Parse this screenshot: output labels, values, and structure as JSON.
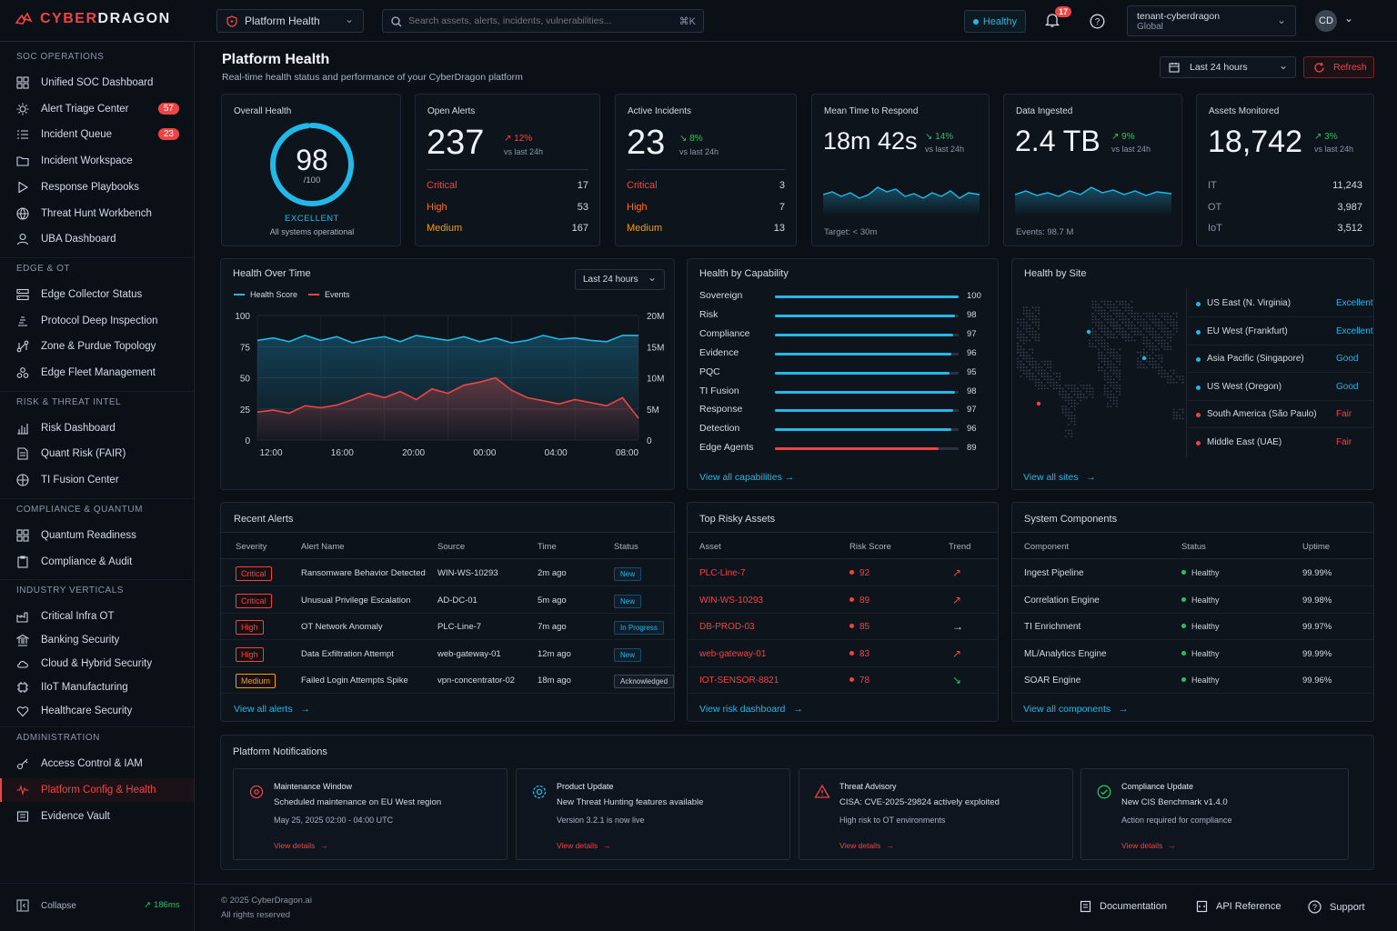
{
  "brand": {
    "name_red": "CYBER",
    "name_white": "DRAGON"
  },
  "topbar": {
    "page_select": "Platform Health",
    "search_placeholder": "Search assets, alerts, incidents, vulnerabilities...",
    "search_kbd": "⌘K",
    "health_status": "Healthy",
    "notifications_count": "17",
    "tenant_name": "tenant-cyberdragon",
    "tenant_scope": "Global",
    "avatar": "CD"
  },
  "sidebar": {
    "sections": [
      {
        "title": "SOC OPERATIONS",
        "items": [
          {
            "label": "Unified SOC Dashboard",
            "icon": "grid-icon"
          },
          {
            "label": "Alert Triage Center",
            "icon": "sun-icon",
            "count": "57"
          },
          {
            "label": "Incident Queue",
            "icon": "list-icon",
            "count": "23"
          },
          {
            "label": "Incident Workspace",
            "icon": "folder-icon"
          },
          {
            "label": "Response Playbooks",
            "icon": "play-icon"
          },
          {
            "label": "Threat Hunt Workbench",
            "icon": "globe-icon"
          },
          {
            "label": "UBA Dashboard",
            "icon": "user-icon"
          }
        ]
      },
      {
        "title": "EDGE & OT",
        "items": [
          {
            "label": "Edge Collector Status",
            "icon": "server-icon"
          },
          {
            "label": "Protocol Deep Inspection",
            "icon": "inspect-icon"
          },
          {
            "label": "Zone & Purdue Topology",
            "icon": "topology-icon"
          },
          {
            "label": "Edge Fleet Management",
            "icon": "fleet-icon"
          }
        ]
      },
      {
        "title": "RISK & THREAT INTEL",
        "items": [
          {
            "label": "Risk Dashboard",
            "icon": "risk-icon"
          },
          {
            "label": "Quant Risk (FAIR)",
            "icon": "document-icon"
          },
          {
            "label": "TI Fusion Center",
            "icon": "target-icon"
          }
        ]
      },
      {
        "title": "COMPLIANCE & QUANTUM",
        "items": [
          {
            "label": "Quantum Readiness",
            "icon": "quantum-icon"
          },
          {
            "label": "Compliance & Audit",
            "icon": "clipboard-icon"
          }
        ]
      },
      {
        "title": "INDUSTRY VERTICALS",
        "items": [
          {
            "label": "Critical Infra OT",
            "icon": "factory-icon"
          },
          {
            "label": "Banking Security",
            "icon": "bank-icon"
          },
          {
            "label": "Cloud & Hybrid Security",
            "icon": "cloud-icon"
          },
          {
            "label": "IIoT Manufacturing",
            "icon": "chip-icon"
          },
          {
            "label": "Healthcare Security",
            "icon": "heart-icon"
          }
        ]
      },
      {
        "title": "ADMINISTRATION",
        "items": [
          {
            "label": "Access Control & IAM",
            "icon": "key-icon"
          },
          {
            "label": "Platform Config & Health",
            "icon": "pulse-icon",
            "active": true
          },
          {
            "label": "Evidence Vault",
            "icon": "vault-icon"
          }
        ]
      }
    ],
    "collapse_label": "Collapse",
    "latency": "186ms"
  },
  "header": {
    "title": "Platform Health",
    "subtitle": "Real-time health status and performance of your CyberDragon platform",
    "range": "Last 24 hours",
    "refresh": "Refresh"
  },
  "kpis": {
    "overall": {
      "title": "Overall Health",
      "score": "98",
      "of": "/100",
      "score_value": 98,
      "rating": "EXCELLENT",
      "note": "All systems operational"
    },
    "open_alerts": {
      "title": "Open Alerts",
      "value": "237",
      "delta": "↗ 12%",
      "vs": "vs last 24h",
      "rows": [
        {
          "label": "Critical",
          "value": "17"
        },
        {
          "label": "High",
          "value": "53"
        },
        {
          "label": "Medium",
          "value": "167"
        }
      ]
    },
    "active_incidents": {
      "title": "Active Incidents",
      "value": "23",
      "delta": "↘ 8%",
      "vs": "vs last 24h",
      "rows": [
        {
          "label": "Critical",
          "value": "3"
        },
        {
          "label": "High",
          "value": "7"
        },
        {
          "label": "Medium",
          "value": "13"
        }
      ]
    },
    "mttr": {
      "title": "Mean Time to Respond",
      "value": "18m 42s",
      "delta": "↘ 14%",
      "vs": "vs last 24h",
      "foot": "Target: < 30m"
    },
    "data_ingested": {
      "title": "Data Ingested",
      "value": "2.4 TB",
      "delta": "↗ 9%",
      "vs": "vs last 24h",
      "foot": "Events: 98.7 M"
    },
    "assets": {
      "title": "Assets Monitored",
      "value": "18,742",
      "delta": "↗ 3%",
      "vs": "vs last 24h",
      "rows": [
        {
          "label": "IT",
          "value": "11,243"
        },
        {
          "label": "OT",
          "value": "3,987"
        },
        {
          "label": "IoT",
          "value": "3,512"
        }
      ]
    }
  },
  "health_over_time": {
    "title": "Health Over Time",
    "range": "Last 24 hours",
    "legend": [
      "Health Score",
      "Events"
    ],
    "left_ticks": [
      "100",
      "75",
      "50",
      "25",
      "0"
    ],
    "right_ticks": [
      "20M",
      "15M",
      "10M",
      "5M",
      "0"
    ],
    "x_ticks": [
      "12:00",
      "16:00",
      "20:00",
      "00:00",
      "04:00",
      "08:00"
    ]
  },
  "chart_data": {
    "type": "line",
    "x": [
      0,
      1,
      2,
      3,
      4,
      5,
      6,
      7,
      8,
      9,
      10,
      11,
      12,
      13,
      14,
      15,
      16,
      17,
      18,
      19,
      20,
      21,
      22,
      23,
      24
    ],
    "series": [
      {
        "name": "Health Score",
        "axis": "left",
        "values": [
          80,
          82,
          79,
          84,
          80,
          83,
          78,
          81,
          83,
          79,
          84,
          82,
          80,
          83,
          79,
          82,
          78,
          80,
          84,
          81,
          82,
          80,
          79,
          84,
          84
        ]
      },
      {
        "name": "Events",
        "axis": "right",
        "values": [
          4.5,
          4.8,
          4.3,
          5.5,
          5.2,
          5.6,
          6.5,
          7.5,
          6.8,
          7.8,
          6.5,
          8.2,
          7.5,
          8.8,
          9.3,
          10.0,
          8.0,
          6.8,
          6.3,
          5.8,
          6.5,
          6.0,
          5.5,
          6.8,
          3.5
        ]
      }
    ],
    "ylim_left": [
      0,
      100
    ],
    "ylim_right": [
      0,
      20
    ],
    "colors": [
      "#22b8e8",
      "#ef4444"
    ]
  },
  "capabilities": {
    "title": "Health by Capability",
    "items": [
      {
        "label": "Sovereign",
        "value": 100,
        "text": "100"
      },
      {
        "label": "Risk",
        "value": 98,
        "text": "98"
      },
      {
        "label": "Compliance",
        "value": 97,
        "text": "97"
      },
      {
        "label": "Evidence",
        "value": 96,
        "text": "96"
      },
      {
        "label": "PQC",
        "value": 95,
        "text": "95"
      },
      {
        "label": "TI Fusion",
        "value": 98,
        "text": "98"
      },
      {
        "label": "Response",
        "value": 97,
        "text": "97"
      },
      {
        "label": "Detection",
        "value": 96,
        "text": "96"
      },
      {
        "label": "Edge Agents",
        "value": 89,
        "text": "89",
        "warn": true
      }
    ],
    "link": "View all capabilities"
  },
  "sites": {
    "title": "Health by Site",
    "items": [
      {
        "name": "US East (N. Virginia)",
        "status": "Excellent",
        "color": "#22b8e8"
      },
      {
        "name": "EU West (Frankfurt)",
        "status": "Excellent",
        "color": "#22b8e8"
      },
      {
        "name": "Asia Pacific (Singapore)",
        "status": "Good",
        "color": "#22b8e8"
      },
      {
        "name": "US West (Oregon)",
        "status": "Good",
        "color": "#22b8e8"
      },
      {
        "name": "South America (São Paulo)",
        "status": "Fair",
        "color": "#ef4444"
      },
      {
        "name": "Middle East (UAE)",
        "status": "Fair",
        "color": "#ef4444"
      }
    ],
    "link": "View all sites"
  },
  "recent_alerts": {
    "title": "Recent Alerts",
    "columns": [
      "Severity",
      "Alert Name",
      "Source",
      "Time",
      "Status"
    ],
    "rows": [
      {
        "severity": "Critical",
        "name": "Ransomware Behavior Detected",
        "source": "WIN-WS-10293",
        "time": "2m ago",
        "status": "New"
      },
      {
        "severity": "Critical",
        "name": "Unusual Privilege Escalation",
        "source": "AD-DC-01",
        "time": "5m ago",
        "status": "New"
      },
      {
        "severity": "High",
        "name": "OT Network Anomaly",
        "source": "PLC-Line-7",
        "time": "7m ago",
        "status": "In Progress"
      },
      {
        "severity": "High",
        "name": "Data Exfiltration Attempt",
        "source": "web-gateway-01",
        "time": "12m ago",
        "status": "New"
      },
      {
        "severity": "Medium",
        "name": "Failed Login Attempts Spike",
        "source": "vpn-concentrator-02",
        "time": "18m ago",
        "status": "Acknowledged"
      }
    ],
    "link": "View all alerts"
  },
  "risky_assets": {
    "title": "Top Risky Assets",
    "columns": [
      "Asset",
      "Risk Score",
      "Trend"
    ],
    "rows": [
      {
        "asset": "PLC-Line-7",
        "score": "92",
        "trend": "↗",
        "trend_color": "#ef4444"
      },
      {
        "asset": "WIN-WS-10293",
        "score": "89",
        "trend": "↗",
        "trend_color": "#ef4444"
      },
      {
        "asset": "DB-PROD-03",
        "score": "85",
        "trend": "→",
        "trend_color": "#d4dbe5"
      },
      {
        "asset": "web-gateway-01",
        "score": "83",
        "trend": "↗",
        "trend_color": "#ef4444"
      },
      {
        "asset": "IOT-SENSOR-8821",
        "score": "78",
        "trend": "↘",
        "trend_color": "#22c55e"
      }
    ],
    "link": "View risk dashboard"
  },
  "components": {
    "title": "System Components",
    "columns": [
      "Component",
      "Status",
      "Uptime"
    ],
    "rows": [
      {
        "name": "Ingest Pipeline",
        "status": "Healthy",
        "uptime": "99.99%"
      },
      {
        "name": "Correlation Engine",
        "status": "Healthy",
        "uptime": "99.98%"
      },
      {
        "name": "TI Enrichment",
        "status": "Healthy",
        "uptime": "99.97%"
      },
      {
        "name": "ML/Analytics Engine",
        "status": "Healthy",
        "uptime": "99.99%"
      },
      {
        "name": "SOAR Engine",
        "status": "Healthy",
        "uptime": "99.96%"
      }
    ],
    "link": "View all components"
  },
  "notifications": {
    "title": "Platform Notifications",
    "items": [
      {
        "kind": "Maintenance Window",
        "line1": "Scheduled maintenance on EU West region",
        "line2": "May 25, 2025 02:00 - 04:00 UTC",
        "link": "View details",
        "icon": "maintenance-icon",
        "color": "#ef4444"
      },
      {
        "kind": "Product Update",
        "line1": "New Threat Hunting features available",
        "line2": "Version 3.2.1 is now live",
        "link": "View details",
        "icon": "update-icon",
        "color": "#22b8e8"
      },
      {
        "kind": "Threat Advisory",
        "line1": "CISA: CVE-2025-29824 actively exploited",
        "line2": "High risk to OT environments",
        "link": "View details",
        "icon": "warning-icon",
        "color": "#ef4444"
      },
      {
        "kind": "Compliance Update",
        "line1": "New CIS Benchmark v1.4.0",
        "line2": "Action required for compliance",
        "link": "View details",
        "icon": "check-icon",
        "color": "#22c55e"
      }
    ]
  },
  "footer": {
    "copyright": "© 2025 CyberDragon.ai",
    "rights": "All rights reserved",
    "links": [
      "Documentation",
      "API Reference",
      "Support"
    ]
  },
  "colors": {
    "accent": "#22b8e8",
    "danger": "#ef4444",
    "warning": "#f59e0b",
    "success": "#22c55e"
  }
}
